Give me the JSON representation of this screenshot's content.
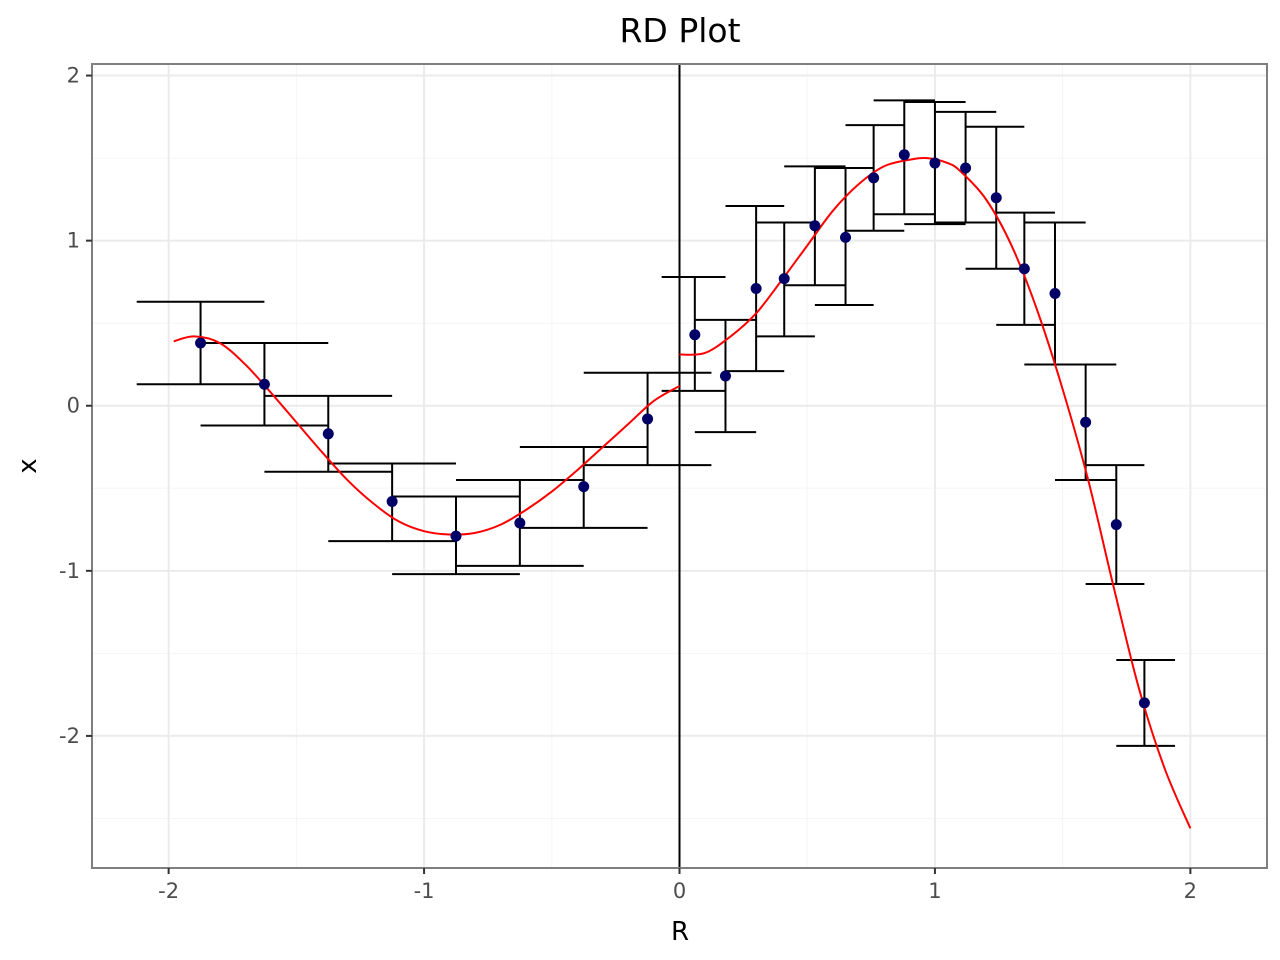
{
  "chart_data": {
    "type": "scatter",
    "title": "RD Plot",
    "xlabel": "R",
    "ylabel": "x",
    "xlim": [
      -2.3,
      2.3
    ],
    "ylim": [
      -2.8,
      2.07
    ],
    "x_ticks": [
      -2,
      -1,
      0,
      1,
      2
    ],
    "x_tick_labels": [
      "-2",
      "-1",
      "0",
      "1",
      "2"
    ],
    "y_ticks": [
      -2,
      -1,
      0,
      1,
      2
    ],
    "y_tick_labels": [
      "-2",
      "-1",
      "0",
      "1",
      "2"
    ],
    "grid": true,
    "cutoff": 0,
    "colors": {
      "points": "#000066",
      "fit": "#ff0000",
      "errorbars": "#000000",
      "grid_major": "#ebebeb",
      "grid_minor": "#f5f5f5",
      "panel_border": "#7f7f7f"
    },
    "series": [
      {
        "type": "points",
        "points": [
          {
            "x": -1.875,
            "y": 0.38,
            "xmin": -2.125,
            "xmax": -1.625,
            "ymin": 0.13,
            "ymax": 0.63
          },
          {
            "x": -1.625,
            "y": 0.13,
            "xmin": -1.875,
            "xmax": -1.375,
            "ymin": -0.12,
            "ymax": 0.38
          },
          {
            "x": -1.375,
            "y": -0.17,
            "xmin": -1.625,
            "xmax": -1.125,
            "ymin": -0.4,
            "ymax": 0.06
          },
          {
            "x": -1.125,
            "y": -0.58,
            "xmin": -1.375,
            "xmax": -0.875,
            "ymin": -0.82,
            "ymax": -0.35
          },
          {
            "x": -0.875,
            "y": -0.79,
            "xmin": -1.125,
            "xmax": -0.625,
            "ymin": -1.02,
            "ymax": -0.55
          },
          {
            "x": -0.625,
            "y": -0.71,
            "xmin": -0.875,
            "xmax": -0.375,
            "ymin": -0.97,
            "ymax": -0.45
          },
          {
            "x": -0.375,
            "y": -0.49,
            "xmin": -0.625,
            "xmax": -0.125,
            "ymin": -0.74,
            "ymax": -0.25
          },
          {
            "x": -0.125,
            "y": -0.08,
            "xmin": -0.375,
            "xmax": 0.125,
            "ymin": -0.36,
            "ymax": 0.2
          },
          {
            "x": 0.06,
            "y": 0.43,
            "xmin": -0.07,
            "xmax": 0.18,
            "ymin": 0.09,
            "ymax": 0.78
          },
          {
            "x": 0.18,
            "y": 0.18,
            "xmin": 0.06,
            "xmax": 0.3,
            "ymin": -0.16,
            "ymax": 0.52
          },
          {
            "x": 0.3,
            "y": 0.71,
            "xmin": 0.18,
            "xmax": 0.41,
            "ymin": 0.21,
            "ymax": 1.21
          },
          {
            "x": 0.41,
            "y": 0.77,
            "xmin": 0.3,
            "xmax": 0.53,
            "ymin": 0.42,
            "ymax": 1.11
          },
          {
            "x": 0.53,
            "y": 1.09,
            "xmin": 0.41,
            "xmax": 0.65,
            "ymin": 0.73,
            "ymax": 1.45
          },
          {
            "x": 0.65,
            "y": 1.02,
            "xmin": 0.53,
            "xmax": 0.76,
            "ymin": 0.61,
            "ymax": 1.44
          },
          {
            "x": 0.76,
            "y": 1.38,
            "xmin": 0.65,
            "xmax": 0.88,
            "ymin": 1.06,
            "ymax": 1.7
          },
          {
            "x": 0.88,
            "y": 1.52,
            "xmin": 0.76,
            "xmax": 1.0,
            "ymin": 1.16,
            "ymax": 1.85
          },
          {
            "x": 1.0,
            "y": 1.47,
            "xmin": 0.88,
            "xmax": 1.12,
            "ymin": 1.1,
            "ymax": 1.84
          },
          {
            "x": 1.12,
            "y": 1.44,
            "xmin": 1.0,
            "xmax": 1.24,
            "ymin": 1.11,
            "ymax": 1.78
          },
          {
            "x": 1.24,
            "y": 1.26,
            "xmin": 1.12,
            "xmax": 1.35,
            "ymin": 0.83,
            "ymax": 1.69
          },
          {
            "x": 1.35,
            "y": 0.83,
            "xmin": 1.24,
            "xmax": 1.47,
            "ymin": 0.49,
            "ymax": 1.17
          },
          {
            "x": 1.47,
            "y": 0.68,
            "xmin": 1.35,
            "xmax": 1.59,
            "ymin": 0.25,
            "ymax": 1.11
          },
          {
            "x": 1.59,
            "y": -0.1,
            "xmin": 1.47,
            "xmax": 1.71,
            "ymin": -0.45,
            "ymax": 0.25
          },
          {
            "x": 1.71,
            "y": -0.72,
            "xmin": 1.59,
            "xmax": 1.82,
            "ymin": -1.08,
            "ymax": -0.36
          },
          {
            "x": 1.82,
            "y": -1.8,
            "xmin": 1.71,
            "xmax": 1.94,
            "ymin": -2.06,
            "ymax": -1.54
          }
        ]
      },
      {
        "type": "fit-left",
        "x": [
          -1.98,
          -1.9,
          -1.8,
          -1.7,
          -1.6,
          -1.5,
          -1.4,
          -1.3,
          -1.2,
          -1.1,
          -1.0,
          -0.9,
          -0.8,
          -0.7,
          -0.6,
          -0.5,
          -0.4,
          -0.3,
          -0.2,
          -0.1,
          0.0
        ],
        "y": [
          0.39,
          0.42,
          0.38,
          0.25,
          0.08,
          -0.1,
          -0.28,
          -0.45,
          -0.59,
          -0.7,
          -0.76,
          -0.78,
          -0.77,
          -0.72,
          -0.63,
          -0.52,
          -0.39,
          -0.25,
          -0.11,
          0.03,
          0.12
        ]
      },
      {
        "type": "fit-right",
        "x": [
          0.0,
          0.1,
          0.2,
          0.3,
          0.4,
          0.5,
          0.6,
          0.7,
          0.8,
          0.9,
          0.97,
          1.05,
          1.1,
          1.2,
          1.3,
          1.4,
          1.5,
          1.6,
          1.7,
          1.8,
          1.9,
          2.0
        ],
        "y": [
          0.31,
          0.32,
          0.42,
          0.56,
          0.76,
          0.97,
          1.18,
          1.34,
          1.45,
          1.49,
          1.5,
          1.47,
          1.42,
          1.25,
          0.97,
          0.58,
          0.1,
          -0.45,
          -1.1,
          -1.72,
          -2.2,
          -2.56
        ]
      }
    ]
  }
}
